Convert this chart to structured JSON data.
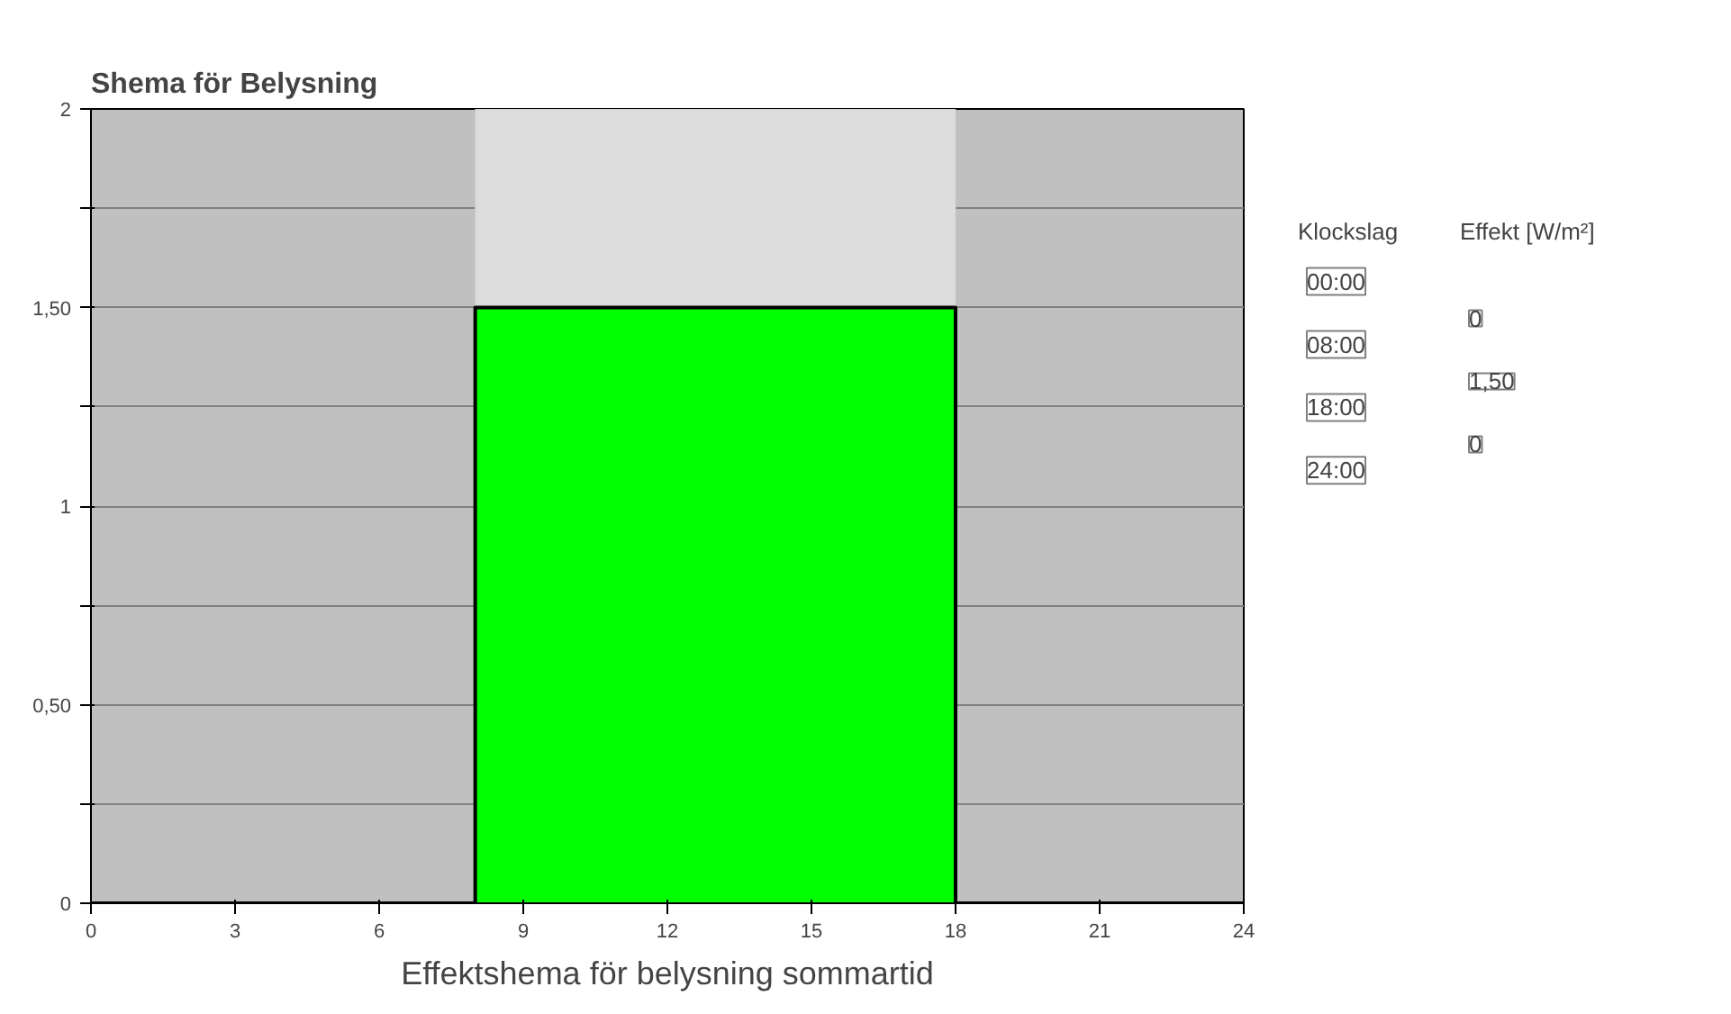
{
  "chart_data": {
    "type": "area",
    "title": "Effektshema för belysning sommartid",
    "subtitle": "Shema för Belysning",
    "x": [
      0,
      8,
      8,
      18,
      18,
      24
    ],
    "series": [
      {
        "color": "#00ff00",
        "values": [
          0,
          0,
          1.5,
          1.5,
          0,
          0
        ]
      }
    ],
    "xlim": [
      0,
      24
    ],
    "xticks": [
      0,
      3,
      6,
      9,
      12,
      15,
      18,
      21,
      24
    ],
    "ylim": [
      0,
      2
    ],
    "yticks": [
      0,
      {
        "value": 0.25,
        "label": null
      },
      {
        "value": 0.5,
        "label": "0,50"
      },
      {
        "value": 0.75,
        "label": null
      },
      1,
      {
        "value": 1.25,
        "label": null
      },
      {
        "value": 1.5,
        "label": "1,50"
      },
      {
        "value": 1.75,
        "label": null
      },
      2
    ],
    "grid": "y",
    "bands": [
      {
        "axis": "x",
        "from": 8,
        "to": 18,
        "color": "#dcdcdc"
      }
    ],
    "annotations": [
      "Klockslag",
      "Effekt [W/m²]",
      "00:00",
      "08:00",
      "18:00",
      "24:00",
      "0",
      "1,50",
      "0"
    ]
  }
}
